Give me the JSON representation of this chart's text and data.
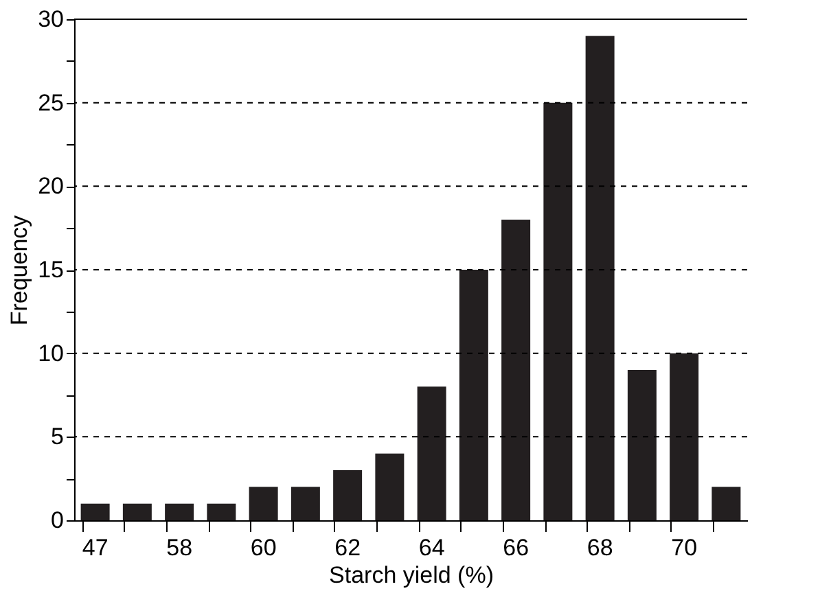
{
  "chart_data": {
    "type": "bar",
    "xlabel": "Starch yield (%)",
    "ylabel": "Frequency",
    "categories": [
      "47",
      null,
      "58",
      null,
      "60",
      null,
      "62",
      null,
      "64",
      null,
      "66",
      null,
      "68",
      null,
      "70",
      null
    ],
    "values": [
      1,
      1,
      1,
      1,
      2,
      2,
      3,
      4,
      8,
      15,
      18,
      25,
      29,
      9,
      10,
      2
    ],
    "color": "#231f20",
    "ylim": [
      0,
      30
    ],
    "yticks": [
      0,
      {
        "value": 2.5,
        "label": null
      },
      5,
      {
        "value": 7.5,
        "label": null
      },
      10,
      {
        "value": 12.5,
        "label": null
      },
      15,
      {
        "value": 17.5,
        "label": null
      },
      20,
      {
        "value": 22.5,
        "label": null
      },
      25,
      {
        "value": 27.5,
        "label": null
      },
      30
    ],
    "grid": "y",
    "line_style": "dashed"
  }
}
